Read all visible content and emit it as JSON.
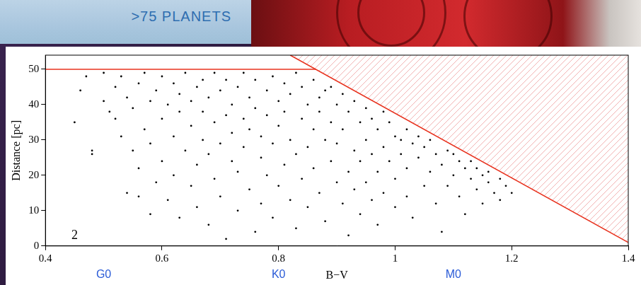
{
  "banner": ">75 PLANETS",
  "chart_data": {
    "type": "scatter",
    "x_label": "B−V",
    "y_label": "Distance [pc]",
    "xlim": [
      0.4,
      1.4
    ],
    "ylim": [
      0,
      54
    ],
    "xticks": [
      0.4,
      0.6,
      0.8,
      1,
      1.2,
      1.4
    ],
    "yticks": [
      0,
      10,
      20,
      30,
      40,
      50
    ],
    "grid": false,
    "series": [
      {
        "type": "scatter",
        "color": "#000000",
        "marker": "dot",
        "x": [
          0.45,
          0.46,
          0.47,
          0.48,
          0.48,
          0.5,
          0.5,
          0.51,
          0.52,
          0.52,
          0.53,
          0.53,
          0.54,
          0.54,
          0.55,
          0.55,
          0.56,
          0.56,
          0.56,
          0.57,
          0.57,
          0.58,
          0.58,
          0.58,
          0.59,
          0.59,
          0.6,
          0.6,
          0.6,
          0.61,
          0.61,
          0.62,
          0.62,
          0.62,
          0.63,
          0.63,
          0.63,
          0.64,
          0.64,
          0.65,
          0.65,
          0.65,
          0.66,
          0.66,
          0.66,
          0.67,
          0.67,
          0.67,
          0.68,
          0.68,
          0.68,
          0.69,
          0.69,
          0.69,
          0.7,
          0.7,
          0.7,
          0.71,
          0.71,
          0.71,
          0.72,
          0.72,
          0.72,
          0.73,
          0.73,
          0.73,
          0.74,
          0.74,
          0.74,
          0.75,
          0.75,
          0.75,
          0.76,
          0.76,
          0.76,
          0.77,
          0.77,
          0.77,
          0.78,
          0.78,
          0.78,
          0.79,
          0.79,
          0.79,
          0.8,
          0.8,
          0.8,
          0.81,
          0.81,
          0.81,
          0.82,
          0.82,
          0.82,
          0.83,
          0.83,
          0.83,
          0.84,
          0.84,
          0.84,
          0.85,
          0.85,
          0.85,
          0.86,
          0.86,
          0.86,
          0.87,
          0.87,
          0.87,
          0.88,
          0.88,
          0.88,
          0.89,
          0.89,
          0.89,
          0.9,
          0.9,
          0.9,
          0.91,
          0.91,
          0.91,
          0.92,
          0.92,
          0.92,
          0.93,
          0.93,
          0.93,
          0.94,
          0.94,
          0.94,
          0.95,
          0.95,
          0.95,
          0.96,
          0.96,
          0.96,
          0.97,
          0.97,
          0.97,
          0.98,
          0.98,
          0.98,
          0.99,
          0.99,
          1.0,
          1.0,
          1.0,
          1.01,
          1.01,
          1.02,
          1.02,
          1.02,
          1.03,
          1.03,
          1.04,
          1.04,
          1.05,
          1.05,
          1.06,
          1.06,
          1.07,
          1.07,
          1.08,
          1.08,
          1.09,
          1.09,
          1.1,
          1.1,
          1.11,
          1.11,
          1.12,
          1.12,
          1.13,
          1.13,
          1.14,
          1.14,
          1.15,
          1.15,
          1.16,
          1.16,
          1.17,
          1.18,
          1.18,
          1.19,
          1.2
        ],
        "values": [
          35,
          44,
          48,
          26,
          27,
          49,
          41,
          38,
          45,
          36,
          48,
          31,
          15,
          42,
          27,
          39,
          46,
          22,
          14,
          33,
          49,
          9,
          41,
          29,
          18,
          44,
          36,
          24,
          48,
          13,
          40,
          31,
          46,
          20,
          8,
          38,
          43,
          27,
          49,
          17,
          34,
          41,
          45,
          23,
          11,
          30,
          47,
          38,
          6,
          26,
          42,
          35,
          19,
          49,
          44,
          29,
          14,
          2,
          37,
          47,
          24,
          40,
          32,
          10,
          45,
          21,
          36,
          49,
          28,
          16,
          42,
          33,
          4,
          39,
          47,
          25,
          31,
          12,
          44,
          37,
          20,
          48,
          29,
          8,
          41,
          34,
          17,
          46,
          23,
          38,
          13,
          43,
          30,
          49,
          26,
          5,
          36,
          19,
          45,
          40,
          28,
          11,
          47,
          33,
          22,
          42,
          15,
          38,
          30,
          44,
          7,
          35,
          24,
          45,
          18,
          40,
          29,
          12,
          43,
          33,
          21,
          38,
          3,
          27,
          41,
          16,
          35,
          9,
          24,
          39,
          30,
          18,
          13,
          36,
          26,
          33,
          21,
          6,
          38,
          28,
          15,
          24,
          35,
          31,
          19,
          11,
          30,
          26,
          22,
          33,
          14,
          29,
          8,
          25,
          31,
          17,
          28,
          21,
          30,
          12,
          26,
          23,
          4,
          27,
          17,
          20,
          26,
          14,
          24,
          22,
          9,
          19,
          24,
          16,
          22,
          20,
          12,
          18,
          21,
          15,
          19,
          13,
          17,
          15
        ]
      },
      {
        "type": "line",
        "color": "#e8321e",
        "line_style": "solid",
        "x": [
          0.4,
          0.864
        ],
        "values": [
          50,
          50
        ]
      },
      {
        "type": "line",
        "color": "#e8321e",
        "line_style": "solid",
        "x": [
          0.82,
          1.4
        ],
        "values": [
          54,
          1
        ]
      }
    ],
    "annotations": [
      {
        "text": "2",
        "x": 0.45,
        "y": 3,
        "color": "#000000"
      },
      {
        "text": "G0",
        "x": 0.5,
        "color": "#2a5bd7"
      },
      {
        "text": "K0",
        "x": 0.8,
        "color": "#2a5bd7"
      },
      {
        "text": "M0",
        "x": 1.1,
        "color": "#2a5bd7"
      }
    ]
  }
}
